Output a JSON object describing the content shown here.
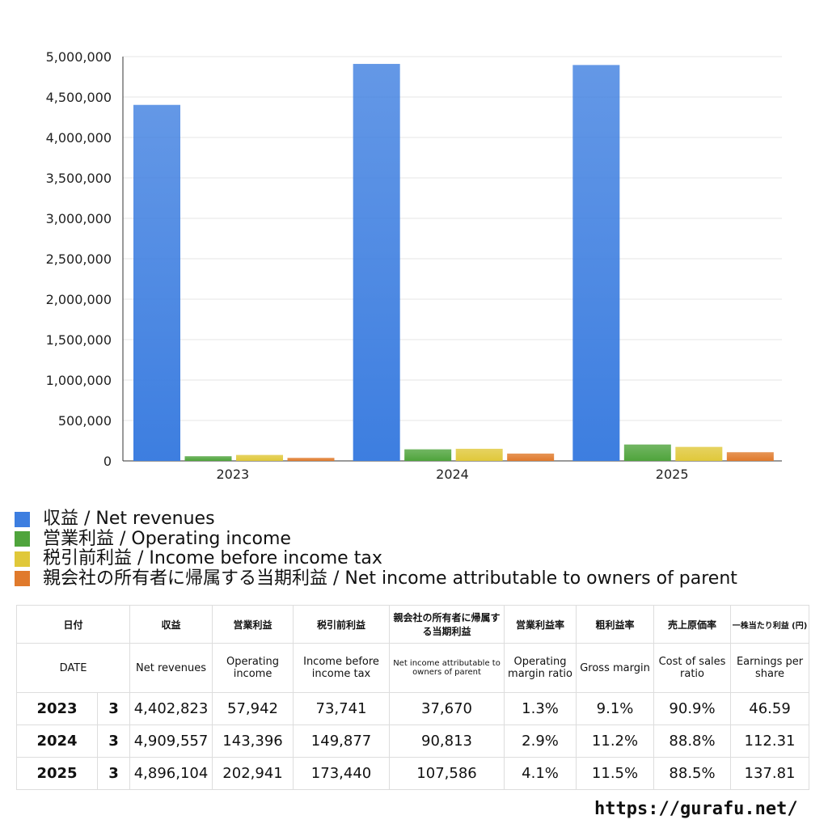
{
  "chart_data": {
    "type": "bar",
    "categories": [
      "2023",
      "2024",
      "2025"
    ],
    "series": [
      {
        "name": "収益 / Net revenues",
        "values": [
          4402823,
          4909557,
          4896104
        ],
        "color": "#3d7ee0"
      },
      {
        "name": "営業利益 / Operating income",
        "values": [
          57942,
          143396,
          202941
        ],
        "color": "#4fa43c"
      },
      {
        "name": "税引前利益 / Income before income tax",
        "values": [
          73741,
          149877,
          173440
        ],
        "color": "#e0c83a"
      },
      {
        "name": "親会社の所有者に帰属する当期利益 / Net income attributable to owners of parent",
        "values": [
          37670,
          90813,
          107586
        ],
        "color": "#e07a2c"
      }
    ],
    "ylim": [
      0,
      5000000
    ],
    "yticks": [
      "0",
      "500,000",
      "1,000,000",
      "1,500,000",
      "2,000,000",
      "2,500,000",
      "3,000,000",
      "3,500,000",
      "4,000,000",
      "4,500,000",
      "5,000,000"
    ],
    "grid": true,
    "legend": "bottom"
  },
  "table": {
    "header_jp": [
      "日付",
      "収益",
      "営業利益",
      "税引前利益",
      "親会社の所有者に帰属する当期利益",
      "営業利益率",
      "粗利益率",
      "売上原価率",
      "一株当たり利益 (円)"
    ],
    "header_en": [
      "DATE",
      "Net revenues",
      "Operating income",
      "Income before income tax",
      "Net income attributable to owners of parent",
      "Operating margin ratio",
      "Gross margin",
      "Cost of sales ratio",
      "Earnings per share"
    ],
    "rows": [
      [
        "2023",
        "3",
        "4,402,823",
        "57,942",
        "73,741",
        "37,670",
        "1.3%",
        "9.1%",
        "90.9%",
        "46.59"
      ],
      [
        "2024",
        "3",
        "4,909,557",
        "143,396",
        "149,877",
        "90,813",
        "2.9%",
        "11.2%",
        "88.8%",
        "112.31"
      ],
      [
        "2025",
        "3",
        "4,896,104",
        "202,941",
        "173,440",
        "107,586",
        "4.1%",
        "11.5%",
        "88.5%",
        "137.81"
      ]
    ]
  },
  "site": "https://gurafu.net/"
}
